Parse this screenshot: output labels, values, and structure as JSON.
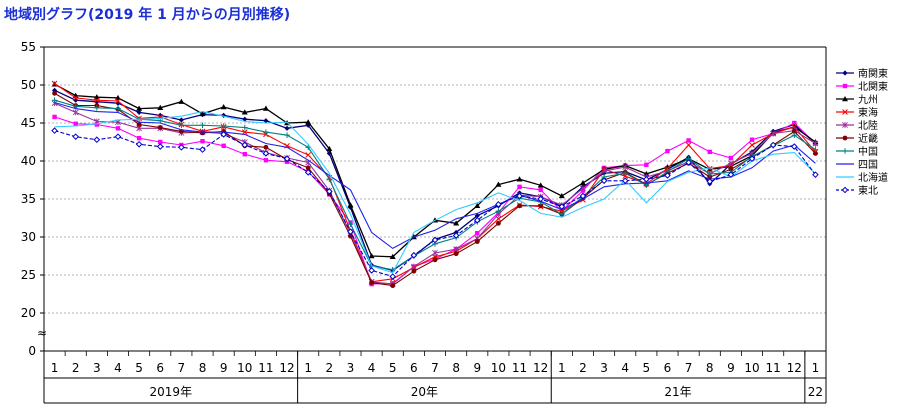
{
  "title": "地域別グラフ(2019 年 1 月からの月別推移)",
  "chart_data": {
    "type": "line",
    "y_ticks": [
      0,
      20,
      25,
      30,
      35,
      40,
      45,
      50,
      55
    ],
    "ylim": [
      0,
      55
    ],
    "axis_break": "≈",
    "grid": true,
    "legend_position": "right",
    "x_labels": [
      "1",
      "2",
      "3",
      "4",
      "5",
      "6",
      "7",
      "8",
      "9",
      "10",
      "11",
      "12",
      "1",
      "2",
      "3",
      "4",
      "5",
      "6",
      "7",
      "8",
      "9",
      "10",
      "11",
      "12",
      "1",
      "2",
      "3",
      "4",
      "5",
      "6",
      "7",
      "8",
      "9",
      "10",
      "11",
      "12",
      "1"
    ],
    "year_labels": [
      {
        "label": "2019年",
        "start": 0,
        "end": 11
      },
      {
        "label": "20年",
        "start": 12,
        "end": 23
      },
      {
        "label": "21年",
        "start": 24,
        "end": 35
      },
      {
        "label": "22",
        "start": 36,
        "end": 36
      }
    ],
    "series": [
      {
        "name": "南関東",
        "color": "#00007f",
        "marker": "diamond",
        "dash": false,
        "values": [
          49.3,
          48.0,
          47.8,
          47.6,
          46.4,
          46.0,
          45.4,
          46.1,
          46.0,
          45.5,
          45.3,
          44.3,
          44.7,
          41.0,
          33.9,
          26.3,
          25.6,
          27.5,
          29.7,
          30.6,
          32.8,
          34.1,
          35.8,
          35.3,
          34.0,
          36.6,
          38.4,
          38.6,
          37.5,
          38.9,
          40.5,
          37.0,
          39.6,
          41.2,
          43.9,
          44.8,
          42.3
        ]
      },
      {
        "name": "北関東",
        "color": "#ff00ff",
        "marker": "square",
        "dash": false,
        "values": [
          45.8,
          44.9,
          44.8,
          44.3,
          43.0,
          42.5,
          42.1,
          42.6,
          42.0,
          40.9,
          40.1,
          39.9,
          38.6,
          35.6,
          31.9,
          23.8,
          23.9,
          26.1,
          27.1,
          28.4,
          30.5,
          33.2,
          36.6,
          36.2,
          33.4,
          36.1,
          39.1,
          39.4,
          39.5,
          41.3,
          42.7,
          41.2,
          40.4,
          42.8,
          43.6,
          45.0,
          42.3
        ]
      },
      {
        "name": "九州",
        "color": "#000000",
        "marker": "triangle",
        "dash": false,
        "values": [
          50.1,
          48.6,
          48.4,
          48.3,
          46.9,
          47.0,
          47.8,
          46.2,
          47.1,
          46.4,
          46.9,
          45.0,
          45.1,
          41.6,
          34.2,
          27.5,
          27.4,
          30.0,
          32.2,
          31.8,
          34.1,
          36.9,
          37.6,
          36.8,
          35.4,
          37.1,
          38.9,
          39.4,
          38.3,
          39.2,
          40.3,
          38.9,
          39.3,
          40.7,
          43.7,
          44.5,
          42.5
        ]
      },
      {
        "name": "東海",
        "color": "#ff0000",
        "marker": "x",
        "dash": false,
        "values": [
          50.2,
          48.3,
          48.0,
          47.9,
          45.6,
          45.8,
          44.8,
          43.9,
          44.5,
          43.8,
          43.5,
          42.0,
          40.8,
          37.8,
          30.8,
          24.1,
          24.5,
          26.0,
          27.4,
          28.1,
          29.8,
          32.4,
          34.2,
          34.0,
          33.4,
          34.9,
          38.9,
          38.0,
          37.0,
          39.0,
          42.1,
          39.0,
          39.4,
          42.1,
          43.6,
          44.5,
          41.2
        ]
      },
      {
        "name": "北陸",
        "color": "#993399",
        "marker": "asterisk",
        "dash": false,
        "values": [
          47.6,
          46.4,
          45.2,
          45.1,
          44.3,
          44.3,
          43.7,
          43.8,
          43.6,
          42.5,
          41.1,
          40.4,
          39.8,
          36.1,
          30.5,
          24.1,
          23.8,
          26.1,
          27.9,
          28.4,
          29.8,
          33.0,
          35.5,
          35.3,
          34.2,
          36.4,
          38.7,
          39.2,
          37.9,
          38.7,
          39.9,
          38.3,
          39.7,
          41.0,
          43.6,
          44.0,
          42.3
        ]
      },
      {
        "name": "近畿",
        "color": "#7f0000",
        "marker": "circle",
        "dash": false,
        "values": [
          48.9,
          47.3,
          47.3,
          46.8,
          44.8,
          44.4,
          43.9,
          43.7,
          43.9,
          42.0,
          41.8,
          40.2,
          39.1,
          35.7,
          30.1,
          24.0,
          23.6,
          25.5,
          27.0,
          27.8,
          29.4,
          31.8,
          34.1,
          34.1,
          33.0,
          35.1,
          37.5,
          38.5,
          36.9,
          38.4,
          39.7,
          37.9,
          38.9,
          40.5,
          42.1,
          43.9,
          41.0
        ]
      },
      {
        "name": "中国",
        "color": "#008080",
        "marker": "plus",
        "dash": false,
        "values": [
          48.0,
          47.2,
          47.0,
          46.9,
          45.5,
          45.3,
          44.7,
          44.7,
          44.6,
          44.4,
          43.8,
          43.4,
          41.8,
          37.6,
          31.7,
          26.2,
          25.7,
          27.5,
          29.1,
          29.9,
          32.0,
          33.4,
          35.1,
          34.6,
          33.0,
          35.3,
          37.9,
          38.4,
          36.8,
          38.6,
          40.3,
          38.3,
          38.5,
          40.6,
          42.0,
          43.4,
          41.5
        ]
      },
      {
        "name": "四国",
        "color": "#2222ee",
        "marker": "none",
        "dash": false,
        "values": [
          47.7,
          46.9,
          46.5,
          46.4,
          45.1,
          45.0,
          44.1,
          43.8,
          43.8,
          43.5,
          42.3,
          41.8,
          40.1,
          38.1,
          36.2,
          30.6,
          28.5,
          30.0,
          30.9,
          32.4,
          33.1,
          34.3,
          35.5,
          34.7,
          33.6,
          35.0,
          36.6,
          37.0,
          37.1,
          37.4,
          38.7,
          37.6,
          37.9,
          39.1,
          41.3,
          42.1,
          39.7
        ]
      },
      {
        "name": "北海道",
        "color": "#33ccff",
        "marker": "none",
        "dash": false,
        "values": [
          44.5,
          44.6,
          44.9,
          45.4,
          45.5,
          45.6,
          45.9,
          46.5,
          45.9,
          45.2,
          45.0,
          45.1,
          42.2,
          38.4,
          33.0,
          26.2,
          25.3,
          30.6,
          32.2,
          33.6,
          34.5,
          35.8,
          34.8,
          33.1,
          32.6,
          33.9,
          35.0,
          37.5,
          34.5,
          37.3,
          38.5,
          39.1,
          37.9,
          40.0,
          40.9,
          41.1,
          38.3
        ]
      },
      {
        "name": "東北",
        "color": "#0000cc",
        "marker": "open-diamond",
        "dash": true,
        "values": [
          44.0,
          43.2,
          42.8,
          43.2,
          42.2,
          41.9,
          41.8,
          41.5,
          43.5,
          42.1,
          41.0,
          40.3,
          38.5,
          36.0,
          30.7,
          25.6,
          24.8,
          27.6,
          29.6,
          30.2,
          32.2,
          34.3,
          35.4,
          35.0,
          34.0,
          35.4,
          37.4,
          37.4,
          37.6,
          38.1,
          39.8,
          37.3,
          38.2,
          40.3,
          42.1,
          41.9,
          38.2
        ]
      }
    ]
  }
}
